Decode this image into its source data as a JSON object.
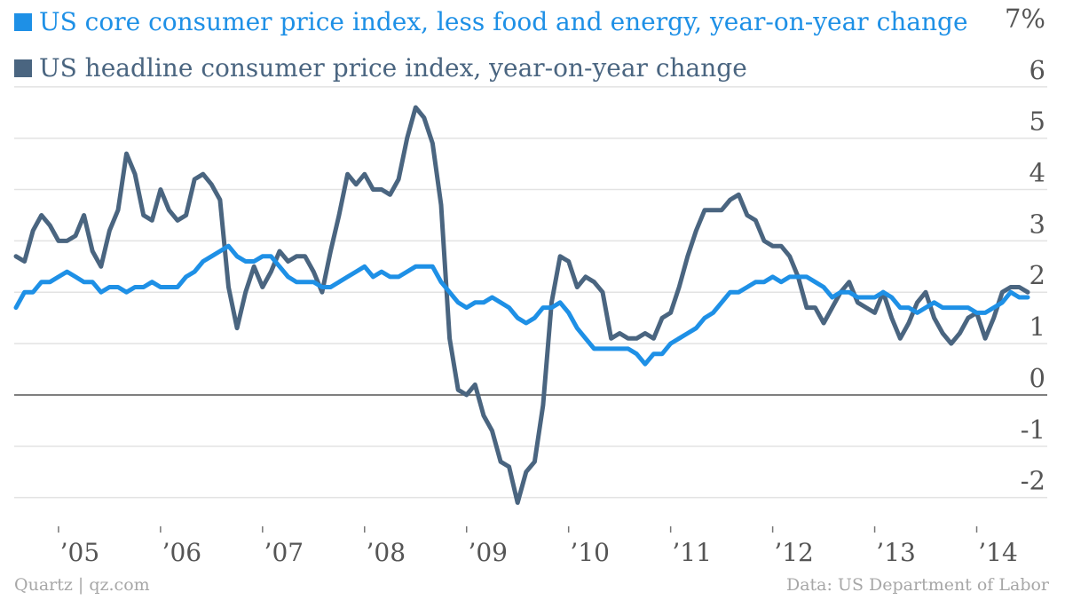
{
  "chart_data": {
    "type": "line",
    "series": [
      {
        "name": "US core consumer price index, less food and energy, year-on-year change",
        "color": "#1e90e6",
        "x": [
          "2004-08",
          "2004-09",
          "2004-10",
          "2004-11",
          "2004-12",
          "2005-01",
          "2005-02",
          "2005-03",
          "2005-04",
          "2005-05",
          "2005-06",
          "2005-07",
          "2005-08",
          "2005-09",
          "2005-10",
          "2005-11",
          "2005-12",
          "2006-01",
          "2006-02",
          "2006-03",
          "2006-04",
          "2006-05",
          "2006-06",
          "2006-07",
          "2006-08",
          "2006-09",
          "2006-10",
          "2006-11",
          "2006-12",
          "2007-01",
          "2007-02",
          "2007-03",
          "2007-04",
          "2007-05",
          "2007-06",
          "2007-07",
          "2007-08",
          "2007-09",
          "2007-10",
          "2007-11",
          "2007-12",
          "2008-01",
          "2008-02",
          "2008-03",
          "2008-04",
          "2008-05",
          "2008-06",
          "2008-07",
          "2008-08",
          "2008-09",
          "2008-10",
          "2008-11",
          "2008-12",
          "2009-01",
          "2009-02",
          "2009-03",
          "2009-04",
          "2009-05",
          "2009-06",
          "2009-07",
          "2009-08",
          "2009-09",
          "2009-10",
          "2009-11",
          "2009-12",
          "2010-01",
          "2010-02",
          "2010-03",
          "2010-04",
          "2010-05",
          "2010-06",
          "2010-07",
          "2010-08",
          "2010-09",
          "2010-10",
          "2010-11",
          "2010-12",
          "2011-01",
          "2011-02",
          "2011-03",
          "2011-04",
          "2011-05",
          "2011-06",
          "2011-07",
          "2011-08",
          "2011-09",
          "2011-10",
          "2011-11",
          "2011-12",
          "2012-01",
          "2012-02",
          "2012-03",
          "2012-04",
          "2012-05",
          "2012-06",
          "2012-07",
          "2012-08",
          "2012-09",
          "2012-10",
          "2012-11",
          "2012-12",
          "2013-01",
          "2013-02",
          "2013-03",
          "2013-04",
          "2013-05",
          "2013-06",
          "2013-07",
          "2013-08",
          "2013-09",
          "2013-10",
          "2013-11",
          "2013-12",
          "2014-01",
          "2014-02",
          "2014-03",
          "2014-04",
          "2014-05",
          "2014-06",
          "2014-07"
        ],
        "values": [
          1.7,
          2.0,
          2.0,
          2.2,
          2.2,
          2.3,
          2.4,
          2.3,
          2.2,
          2.2,
          2.0,
          2.1,
          2.1,
          2.0,
          2.1,
          2.1,
          2.2,
          2.1,
          2.1,
          2.1,
          2.3,
          2.4,
          2.6,
          2.7,
          2.8,
          2.9,
          2.7,
          2.6,
          2.6,
          2.7,
          2.7,
          2.5,
          2.3,
          2.2,
          2.2,
          2.2,
          2.1,
          2.1,
          2.2,
          2.3,
          2.4,
          2.5,
          2.3,
          2.4,
          2.3,
          2.3,
          2.4,
          2.5,
          2.5,
          2.5,
          2.2,
          2.0,
          1.8,
          1.7,
          1.8,
          1.8,
          1.9,
          1.8,
          1.7,
          1.5,
          1.4,
          1.5,
          1.7,
          1.7,
          1.8,
          1.6,
          1.3,
          1.1,
          0.9,
          0.9,
          0.9,
          0.9,
          0.9,
          0.8,
          0.6,
          0.8,
          0.8,
          1.0,
          1.1,
          1.2,
          1.3,
          1.5,
          1.6,
          1.8,
          2.0,
          2.0,
          2.1,
          2.2,
          2.2,
          2.3,
          2.2,
          2.3,
          2.3,
          2.3,
          2.2,
          2.1,
          1.9,
          2.0,
          2.0,
          1.9,
          1.9,
          1.9,
          2.0,
          1.9,
          1.7,
          1.7,
          1.6,
          1.7,
          1.8,
          1.7,
          1.7,
          1.7,
          1.7,
          1.6,
          1.6,
          1.7,
          1.8,
          2.0,
          1.9,
          1.9
        ]
      },
      {
        "name": "US headline consumer price index, year-on-year change",
        "color": "#4a6580",
        "x": [
          "2004-08",
          "2004-09",
          "2004-10",
          "2004-11",
          "2004-12",
          "2005-01",
          "2005-02",
          "2005-03",
          "2005-04",
          "2005-05",
          "2005-06",
          "2005-07",
          "2005-08",
          "2005-09",
          "2005-10",
          "2005-11",
          "2005-12",
          "2006-01",
          "2006-02",
          "2006-03",
          "2006-04",
          "2006-05",
          "2006-06",
          "2006-07",
          "2006-08",
          "2006-09",
          "2006-10",
          "2006-11",
          "2006-12",
          "2007-01",
          "2007-02",
          "2007-03",
          "2007-04",
          "2007-05",
          "2007-06",
          "2007-07",
          "2007-08",
          "2007-09",
          "2007-10",
          "2007-11",
          "2007-12",
          "2008-01",
          "2008-02",
          "2008-03",
          "2008-04",
          "2008-05",
          "2008-06",
          "2008-07",
          "2008-08",
          "2008-09",
          "2008-10",
          "2008-11",
          "2008-12",
          "2009-01",
          "2009-02",
          "2009-03",
          "2009-04",
          "2009-05",
          "2009-06",
          "2009-07",
          "2009-08",
          "2009-09",
          "2009-10",
          "2009-11",
          "2009-12",
          "2010-01",
          "2010-02",
          "2010-03",
          "2010-04",
          "2010-05",
          "2010-06",
          "2010-07",
          "2010-08",
          "2010-09",
          "2010-10",
          "2010-11",
          "2010-12",
          "2011-01",
          "2011-02",
          "2011-03",
          "2011-04",
          "2011-05",
          "2011-06",
          "2011-07",
          "2011-08",
          "2011-09",
          "2011-10",
          "2011-11",
          "2011-12",
          "2012-01",
          "2012-02",
          "2012-03",
          "2012-04",
          "2012-05",
          "2012-06",
          "2012-07",
          "2012-08",
          "2012-09",
          "2012-10",
          "2012-11",
          "2012-12",
          "2013-01",
          "2013-02",
          "2013-03",
          "2013-04",
          "2013-05",
          "2013-06",
          "2013-07",
          "2013-08",
          "2013-09",
          "2013-10",
          "2013-11",
          "2013-12",
          "2014-01",
          "2014-02",
          "2014-03",
          "2014-04",
          "2014-05",
          "2014-06",
          "2014-07"
        ],
        "values": [
          2.7,
          2.6,
          3.2,
          3.5,
          3.3,
          3.0,
          3.0,
          3.1,
          3.5,
          2.8,
          2.5,
          3.2,
          3.6,
          4.7,
          4.3,
          3.5,
          3.4,
          4.0,
          3.6,
          3.4,
          3.5,
          4.2,
          4.3,
          4.1,
          3.8,
          2.1,
          1.3,
          2.0,
          2.5,
          2.1,
          2.4,
          2.8,
          2.6,
          2.7,
          2.7,
          2.4,
          2.0,
          2.8,
          3.5,
          4.3,
          4.1,
          4.3,
          4.0,
          4.0,
          3.9,
          4.2,
          5.0,
          5.6,
          5.4,
          4.9,
          3.7,
          1.1,
          0.1,
          0.0,
          0.2,
          -0.4,
          -0.7,
          -1.3,
          -1.4,
          -2.1,
          -1.5,
          -1.3,
          -0.2,
          1.8,
          2.7,
          2.6,
          2.1,
          2.3,
          2.2,
          2.0,
          1.1,
          1.2,
          1.1,
          1.1,
          1.2,
          1.1,
          1.5,
          1.6,
          2.1,
          2.7,
          3.2,
          3.6,
          3.6,
          3.6,
          3.8,
          3.9,
          3.5,
          3.4,
          3.0,
          2.9,
          2.9,
          2.7,
          2.3,
          1.7,
          1.7,
          1.4,
          1.7,
          2.0,
          2.2,
          1.8,
          1.7,
          1.6,
          2.0,
          1.5,
          1.1,
          1.4,
          1.8,
          2.0,
          1.5,
          1.2,
          1.0,
          1.2,
          1.5,
          1.6,
          1.1,
          1.5,
          2.0,
          2.1,
          2.1,
          2.0
        ]
      }
    ],
    "title": "",
    "xlabel": "",
    "ylabel": "",
    "ylim": [
      -2.3,
      7
    ],
    "y_ticks": [
      -2,
      -1,
      0,
      1,
      2,
      3,
      4,
      5,
      6,
      7
    ],
    "y_tick_labels": [
      "-2",
      "-1",
      "0",
      "1",
      "2",
      "3",
      "4",
      "5",
      "6",
      "7%"
    ],
    "x_range": [
      "2004-08",
      "2014-07"
    ],
    "x_ticks": [
      "2005-01",
      "2006-01",
      "2007-01",
      "2008-01",
      "2009-01",
      "2010-01",
      "2011-01",
      "2012-01",
      "2013-01",
      "2014-01"
    ],
    "x_tick_labels": [
      "’05",
      "’06",
      "’07",
      "’08",
      "’09",
      "’10",
      "’11",
      "’12",
      "’13",
      "’14"
    ],
    "grid": true,
    "legend_position": "top-left",
    "colors": {
      "grid": "#e3e3e3",
      "zero_line": "#555555",
      "tick_text": "#555555"
    }
  },
  "footer": {
    "source_left": "Quartz | qz.com",
    "source_right": "Data: US Department of Labor"
  }
}
